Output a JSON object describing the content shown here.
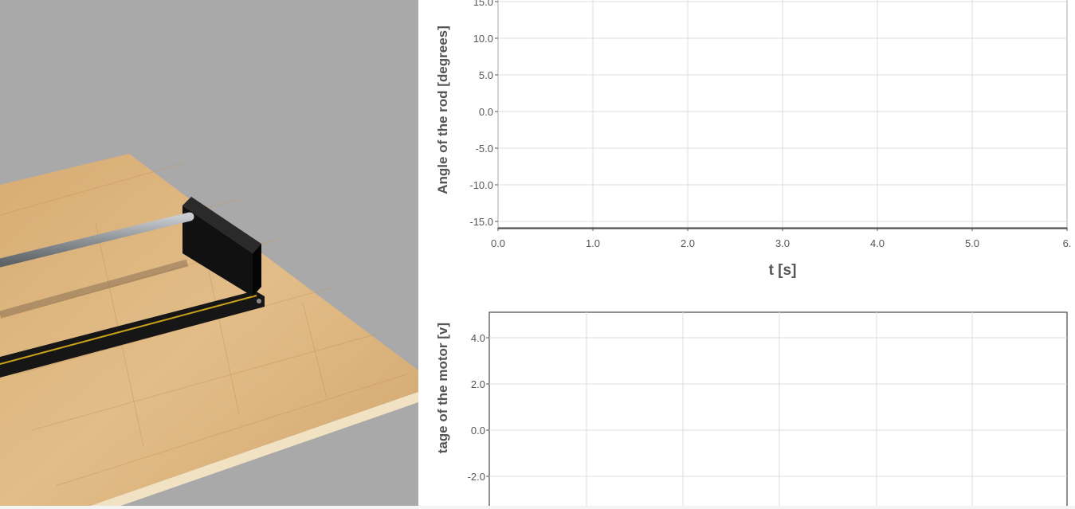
{
  "scene": {
    "background_color": "#a9a9a9",
    "table_color": "#d9b07a",
    "rail_color": "#1a1a1a",
    "rod_color": "#9ea3a8",
    "track_stripe_color": "#c9a21a"
  },
  "chart_data": [
    {
      "type": "line",
      "title": "",
      "xlabel": "t [s]",
      "ylabel": "Angle of the rod [degrees]",
      "xlim": [
        0.0,
        6.0
      ],
      "ylim": [
        -15.0,
        15.0
      ],
      "x_ticks": [
        "0.0",
        "1.0",
        "2.0",
        "3.0",
        "4.0",
        "5.0",
        "6."
      ],
      "y_ticks": [
        "15.0",
        "10.0",
        "5.0",
        "0.0",
        "-5.0",
        "-10.0",
        "-15.0"
      ],
      "grid": true,
      "series": []
    },
    {
      "type": "line",
      "title": "",
      "xlabel": "",
      "ylabel": "tage of the motor [v]",
      "ylim": [
        -4.0,
        5.0
      ],
      "y_ticks": [
        "4.0",
        "2.0",
        "0.0",
        "-2.0"
      ],
      "grid": true,
      "series": []
    }
  ]
}
